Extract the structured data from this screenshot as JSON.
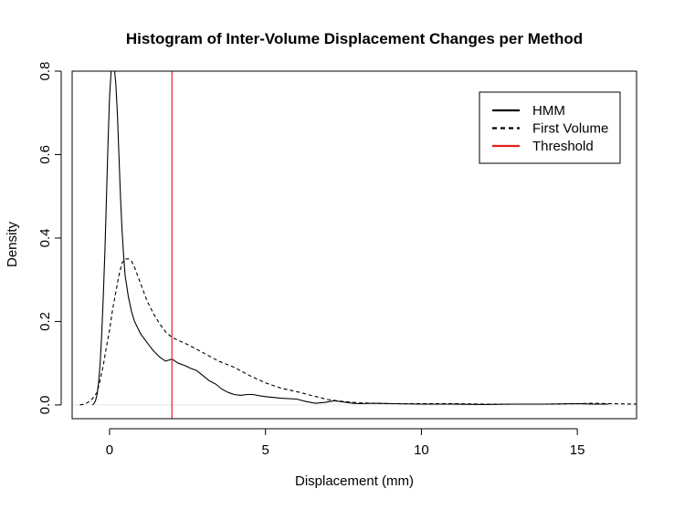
{
  "chart_data": {
    "type": "line",
    "title": "Histogram of Inter-Volume Displacement Changes per Method",
    "xlabel": "Displacement (mm)",
    "ylabel": "Density",
    "xlim": [
      -1.2,
      16.9
    ],
    "ylim": [
      -0.033,
      0.8
    ],
    "x_ticks": [
      0,
      5,
      10,
      15
    ],
    "y_ticks": [
      0.0,
      0.2,
      0.4,
      0.6,
      0.8
    ],
    "x_tick_labels": [
      "0",
      "5",
      "10",
      "15"
    ],
    "y_tick_labels": [
      "0.0",
      "0.2",
      "0.4",
      "0.6",
      "0.8"
    ],
    "grid": false,
    "legend_position": "top-right",
    "series": [
      {
        "name": "HMM",
        "style": "solid",
        "color": "#000000",
        "x": [
          -0.55,
          -0.5,
          -0.45,
          -0.4,
          -0.35,
          -0.3,
          -0.25,
          -0.2,
          -0.15,
          -0.1,
          -0.05,
          0.0,
          0.05,
          0.1,
          0.15,
          0.2,
          0.25,
          0.3,
          0.35,
          0.4,
          0.45,
          0.5,
          0.6,
          0.7,
          0.8,
          0.9,
          1.0,
          1.2,
          1.4,
          1.6,
          1.8,
          2.0,
          2.2,
          2.4,
          2.6,
          2.8,
          3.0,
          3.2,
          3.4,
          3.6,
          3.8,
          4.0,
          4.2,
          4.4,
          4.6,
          4.8,
          5.0,
          5.5,
          6.0,
          6.3,
          6.6,
          6.9,
          7.2,
          7.5,
          7.8,
          8.0,
          8.5,
          9.0,
          10.0,
          11.0,
          12.0,
          13.0,
          14.0,
          15.0,
          15.5,
          16.0
        ],
        "y": [
          0.0,
          0.003,
          0.01,
          0.025,
          0.055,
          0.1,
          0.17,
          0.26,
          0.37,
          0.5,
          0.63,
          0.74,
          0.8,
          0.82,
          0.81,
          0.77,
          0.7,
          0.6,
          0.5,
          0.42,
          0.36,
          0.31,
          0.26,
          0.225,
          0.2,
          0.185,
          0.17,
          0.15,
          0.13,
          0.115,
          0.105,
          0.11,
          0.1,
          0.095,
          0.088,
          0.082,
          0.07,
          0.058,
          0.05,
          0.038,
          0.03,
          0.025,
          0.023,
          0.025,
          0.025,
          0.022,
          0.02,
          0.016,
          0.014,
          0.008,
          0.004,
          0.006,
          0.01,
          0.007,
          0.004,
          0.003,
          0.004,
          0.003,
          0.002,
          0.002,
          0.001,
          0.002,
          0.002,
          0.003,
          0.002,
          0.002
        ]
      },
      {
        "name": "First Volume",
        "style": "dashed",
        "color": "#000000",
        "x": [
          -0.95,
          -0.8,
          -0.6,
          -0.4,
          -0.3,
          -0.2,
          -0.1,
          0.0,
          0.1,
          0.2,
          0.3,
          0.4,
          0.5,
          0.6,
          0.7,
          0.8,
          0.9,
          1.0,
          1.1,
          1.2,
          1.4,
          1.6,
          1.8,
          2.0,
          2.2,
          2.5,
          3.0,
          3.5,
          4.0,
          4.5,
          5.0,
          5.5,
          6.0,
          6.5,
          7.0,
          7.5,
          8.0,
          8.5,
          9.0,
          10.0,
          11.0,
          12.0,
          13.0,
          14.0,
          15.0,
          15.5,
          16.0,
          16.9
        ],
        "y": [
          0.0,
          0.002,
          0.01,
          0.03,
          0.06,
          0.095,
          0.14,
          0.18,
          0.23,
          0.27,
          0.31,
          0.34,
          0.35,
          0.35,
          0.345,
          0.33,
          0.31,
          0.29,
          0.27,
          0.25,
          0.22,
          0.195,
          0.175,
          0.162,
          0.155,
          0.145,
          0.125,
          0.105,
          0.09,
          0.07,
          0.053,
          0.04,
          0.032,
          0.022,
          0.013,
          0.008,
          0.005,
          0.004,
          0.003,
          0.003,
          0.003,
          0.002,
          0.002,
          0.002,
          0.003,
          0.004,
          0.003,
          0.002
        ]
      }
    ],
    "annotations": [
      {
        "name": "Threshold",
        "type": "vline",
        "x": 2,
        "color": "#e0201b"
      }
    ],
    "legend": {
      "entries": [
        {
          "label": "HMM",
          "style": "solid",
          "color": "#000000"
        },
        {
          "label": "First Volume",
          "style": "dashed",
          "color": "#000000"
        },
        {
          "label": "Threshold",
          "style": "solid",
          "color": "#e0201b"
        }
      ]
    }
  }
}
